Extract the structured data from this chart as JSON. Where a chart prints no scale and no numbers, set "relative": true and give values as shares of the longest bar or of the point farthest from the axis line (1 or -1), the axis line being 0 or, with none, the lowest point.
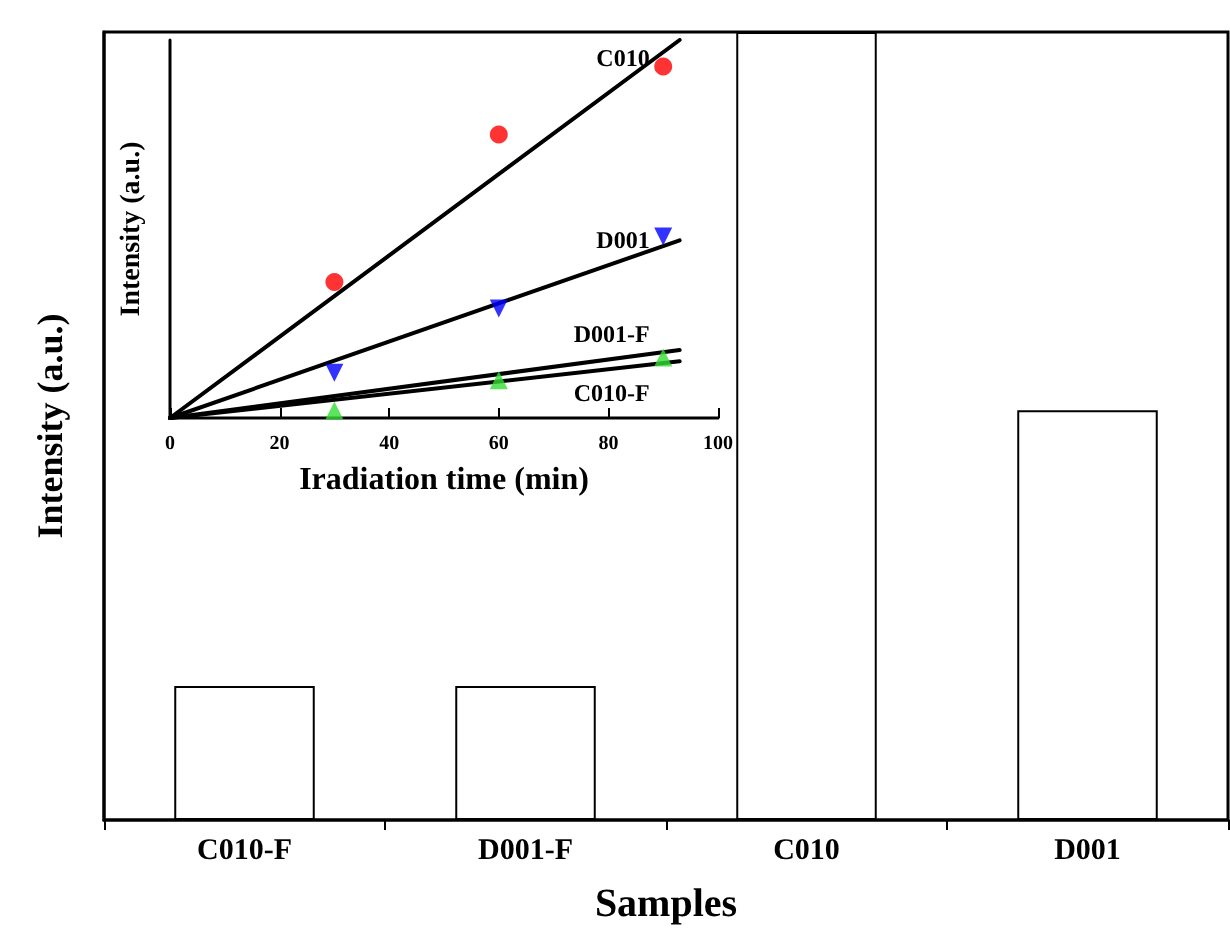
{
  "chart_data": [
    {
      "type": "bar",
      "relative": true,
      "xlabel": "Samples",
      "ylabel": "Intensity (a.u.)",
      "categories": [
        "C010-F",
        "D001-F",
        "C010",
        "D001"
      ],
      "values": [
        0.17,
        0.17,
        1,
        0.52
      ],
      "color": "#ffffff",
      "grid": false,
      "legend": false
    },
    {
      "type": "scatter",
      "relative": true,
      "xlabel": "Iradiation time (min)",
      "ylabel": "Intensity (a.u.)",
      "xlim": [
        0,
        100
      ],
      "xticks": [
        0,
        20,
        40,
        60,
        80,
        100
      ],
      "tick_labels": "x",
      "grid": false,
      "legend": false,
      "series": [
        {
          "type": "scatter",
          "marker": "circle",
          "color": "#ff0000",
          "x": [
            30,
            60,
            90
          ],
          "values": [
            0.36,
            0.75,
            0.93
          ]
        },
        {
          "type": "scatter",
          "marker": "triangle-down",
          "color": "#0000ff",
          "x": [
            30,
            60,
            90
          ],
          "values": [
            0.12,
            0.29,
            0.48
          ]
        },
        {
          "type": "scatter",
          "marker": "triangle",
          "color": "#33dd33",
          "x": [
            30,
            60,
            90
          ],
          "values": [
            0.02,
            0.1,
            0.16
          ]
        },
        {
          "type": "line",
          "name": "C010",
          "color": "#000000",
          "x": [
            0,
            93
          ],
          "values": [
            0,
            1
          ],
          "marker": "none",
          "line_style": "solid"
        },
        {
          "type": "line",
          "name": "D001",
          "color": "#000000",
          "x": [
            0,
            93
          ],
          "values": [
            0,
            0.47
          ],
          "marker": "none",
          "line_style": "solid"
        },
        {
          "type": "line",
          "name": "D001-F",
          "color": "#000000",
          "x": [
            0,
            93
          ],
          "values": [
            0,
            0.18
          ],
          "marker": "none",
          "line_style": "solid"
        },
        {
          "type": "line",
          "name": "C010-F",
          "color": "#000000",
          "x": [
            0,
            93
          ],
          "values": [
            0,
            0.15
          ],
          "marker": "none",
          "line_style": "solid"
        }
      ]
    }
  ]
}
